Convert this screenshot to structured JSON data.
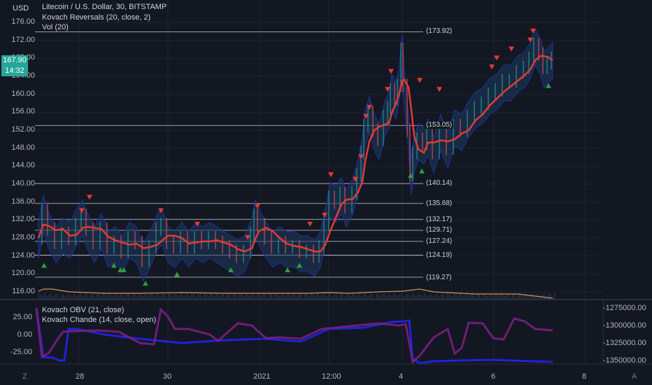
{
  "header": {
    "currency": "USD",
    "symbol_line": "Litecoin / U.S. Dollar, 30, BITSTAMP",
    "indicator_1": "Kovach Reversals (20, close, 2)",
    "indicator_2": "Vol (20)"
  },
  "price_axis": {
    "labels": [
      "176.00",
      "172.00",
      "168.00",
      "164.00",
      "160.00",
      "156.00",
      "152.00",
      "148.00",
      "144.00",
      "140.00",
      "136.00",
      "132.00",
      "128.00",
      "124.00",
      "120.00",
      "116.00"
    ],
    "last_price": "167.90",
    "countdown": "14:32",
    "last_price_color": "#26a69a"
  },
  "levels": [
    "(173.92)",
    "(153.05)",
    "(140.14)",
    "(135.68)",
    "(132.17)",
    "(129.71)",
    "(127.24)",
    "(124.19)",
    "(119.27)"
  ],
  "time_axis": [
    "28",
    "30",
    "2021",
    "12:00",
    "4",
    "6",
    "8"
  ],
  "lower_pane": {
    "indicator_1": "Kovach OBV (21, close)",
    "indicator_2": "Kovach Chande (14, close, open)",
    "left_labels": [
      "25.00",
      "0.00",
      "-25.00"
    ],
    "right_labels": [
      "-1275000.00",
      "-1300000.00",
      "-1325000.00",
      "-1350000.00"
    ]
  },
  "colors": {
    "background": "#131722",
    "ma_line": "#e53935",
    "band_fill": "#1e3a5f",
    "down_marker": "#e53935",
    "up_marker": "#2e9e3e",
    "obv_line": "#1e23d6",
    "chande_line": "#7b1f7e",
    "volume_line": "#d4935a"
  },
  "icons": {
    "logo": "tradingview-logo-icon",
    "settings": "auto-scale-icon"
  }
}
